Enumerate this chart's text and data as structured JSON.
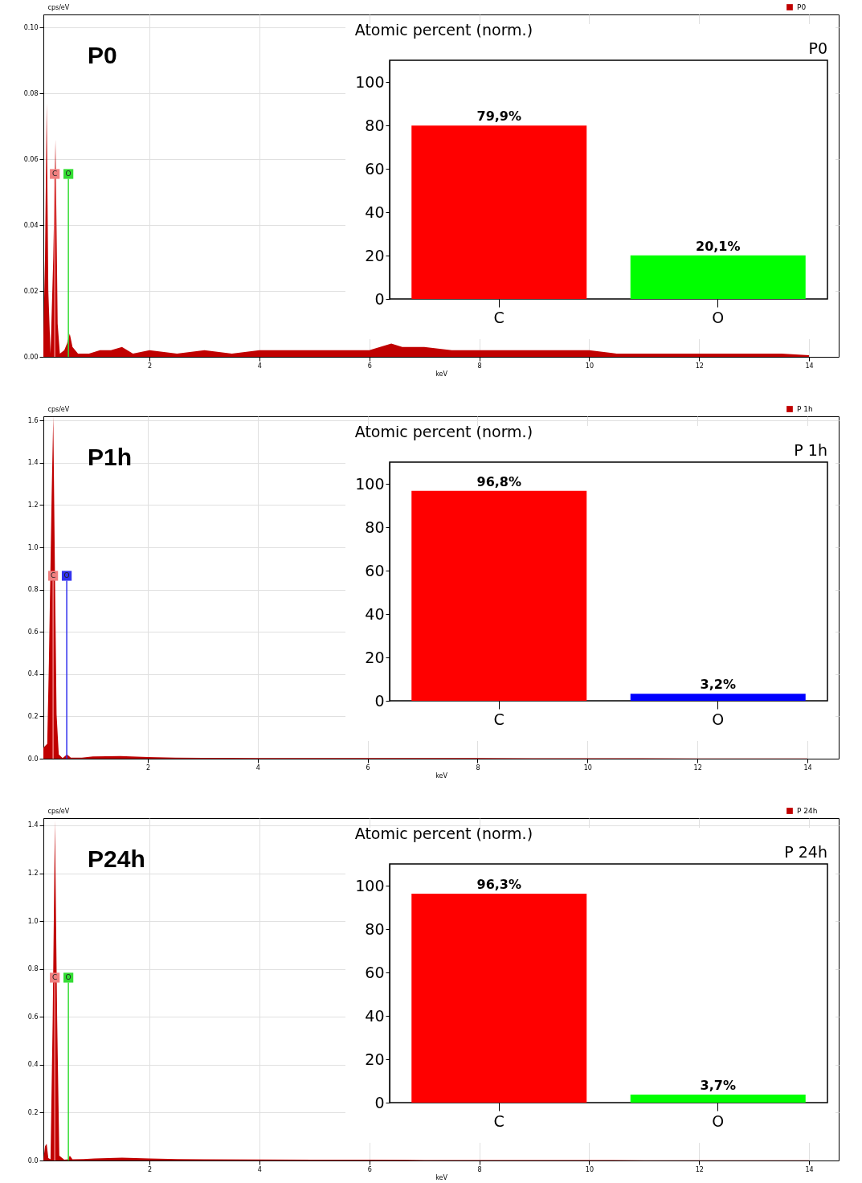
{
  "chart_data": [
    {
      "type": "area",
      "xlabel": "keV",
      "ylabel": "cps/eV",
      "annotations": [
        "P0"
      ],
      "legend": "top right",
      "grid": true,
      "xlim": [
        0.07,
        14.54
      ],
      "xticks": [
        2,
        4,
        6,
        8,
        10,
        12,
        14
      ],
      "ylim": [
        0,
        0.104
      ],
      "yticks": [
        {
          "value": 0,
          "label": "0.00"
        },
        {
          "value": 0.02,
          "label": "0.02"
        },
        {
          "value": 0.04,
          "label": "0.04"
        },
        {
          "value": 0.06,
          "label": "0.06"
        },
        {
          "value": 0.08,
          "label": "0.08"
        },
        {
          "value": 0.1,
          "label": "0.10"
        }
      ],
      "ref_lines": [
        {
          "axis": "x",
          "value": 0.277,
          "label": "C",
          "color": "#f08080"
        },
        {
          "axis": "x",
          "value": 0.525,
          "label": "O",
          "color": "#33dd33"
        }
      ],
      "series": [
        {
          "name": "P0",
          "color": "#c00000",
          "x": [
            0.07,
            0.1,
            0.13,
            0.16,
            0.2,
            0.25,
            0.29,
            0.33,
            0.37,
            0.45,
            0.5,
            0.55,
            0.6,
            0.7,
            0.9,
            1.1,
            1.3,
            1.5,
            1.7,
            2,
            2.5,
            3,
            3.5,
            4,
            4.5,
            5,
            5.5,
            6,
            6.4,
            6.6,
            7,
            7.5,
            8,
            8.5,
            9,
            9.5,
            10,
            10.5,
            11,
            11.5,
            12,
            12.5,
            13,
            13.5,
            14
          ],
          "values": [
            0.006,
            0.03,
            0.077,
            0.02,
            0.001,
            0.03,
            0.066,
            0.01,
            0.001,
            0.002,
            0.004,
            0.007,
            0.003,
            0.001,
            0.001,
            0.002,
            0.002,
            0.003,
            0.001,
            0.002,
            0.001,
            0.002,
            0.001,
            0.002,
            0.002,
            0.002,
            0.002,
            0.002,
            0.004,
            0.003,
            0.003,
            0.002,
            0.002,
            0.002,
            0.002,
            0.002,
            0.002,
            0.001,
            0.001,
            0.001,
            0.001,
            0.001,
            0.001,
            0.001,
            0.0005
          ]
        }
      ]
    },
    {
      "type": "bar",
      "title": "Atomic percent (norm.)",
      "annotations": [
        "P0"
      ],
      "categories": [
        "C",
        "O"
      ],
      "values": [
        79.9,
        20.1
      ],
      "colors": [
        "#ff0000",
        "#00ff00"
      ],
      "value_labels": [
        "79,9%",
        "20,1%"
      ],
      "ylim": [
        0,
        110
      ],
      "yticks": [
        0,
        20,
        40,
        60,
        80,
        100
      ]
    },
    {
      "type": "area",
      "xlabel": "keV",
      "ylabel": "cps/eV",
      "annotations": [
        "P1h"
      ],
      "legend": "top right",
      "grid": true,
      "xlim": [
        0.1,
        14.57
      ],
      "xticks": [
        2,
        4,
        6,
        8,
        10,
        12,
        14
      ],
      "ylim": [
        0,
        1.62
      ],
      "yticks": [
        {
          "value": 0,
          "label": "0.0"
        },
        {
          "value": 0.2,
          "label": "0.2"
        },
        {
          "value": 0.4,
          "label": "0.4"
        },
        {
          "value": 0.6,
          "label": "0.6"
        },
        {
          "value": 0.8,
          "label": "0.8"
        },
        {
          "value": 1,
          "label": "1.0"
        },
        {
          "value": 1.2,
          "label": "1.2"
        },
        {
          "value": 1.4,
          "label": "1.4"
        },
        {
          "value": 1.6,
          "label": "1.6"
        }
      ],
      "ref_lines": [
        {
          "axis": "x",
          "value": 0.277,
          "label": "C",
          "color": "#f08080"
        },
        {
          "axis": "x",
          "value": 0.525,
          "label": "O",
          "color": "#3333ee"
        }
      ],
      "series": [
        {
          "name": "P 1h",
          "color": "#c00000",
          "x": [
            0.1,
            0.13,
            0.17,
            0.2,
            0.25,
            0.28,
            0.31,
            0.34,
            0.38,
            0.45,
            0.53,
            0.6,
            0.8,
            1,
            1.5,
            2,
            2.5,
            3,
            4,
            5,
            6,
            7,
            8,
            9,
            10,
            11,
            12,
            13,
            14
          ],
          "values": [
            0.05,
            0.06,
            0.07,
            0.45,
            1.24,
            1.62,
            0.89,
            0.21,
            0.02,
            0.003,
            0.02,
            0.005,
            0.005,
            0.01,
            0.012,
            0.008,
            0.005,
            0.004,
            0.003,
            0.003,
            0.003,
            0.003,
            0.003,
            0.002,
            0.002,
            0.002,
            0.001,
            0.001,
            0.001
          ]
        }
      ]
    },
    {
      "type": "bar",
      "title": "Atomic percent (norm.)",
      "annotations": [
        "P 1h"
      ],
      "categories": [
        "C",
        "O"
      ],
      "values": [
        96.8,
        3.2
      ],
      "colors": [
        "#ff0000",
        "#0000ff"
      ],
      "value_labels": [
        "96,8%",
        "3,2%"
      ],
      "ylim": [
        0,
        110
      ],
      "yticks": [
        0,
        20,
        40,
        60,
        80,
        100
      ]
    },
    {
      "type": "area",
      "xlabel": "keV",
      "ylabel": "cps/eV",
      "annotations": [
        "P24h"
      ],
      "legend": "top right",
      "grid": true,
      "xlim": [
        0.07,
        14.54
      ],
      "xticks": [
        2,
        4,
        6,
        8,
        10,
        12,
        14
      ],
      "ylim": [
        0,
        1.43
      ],
      "yticks": [
        {
          "value": 0,
          "label": "0.0"
        },
        {
          "value": 0.2,
          "label": "0.2"
        },
        {
          "value": 0.4,
          "label": "0.4"
        },
        {
          "value": 0.6,
          "label": "0.6"
        },
        {
          "value": 0.8,
          "label": "0.8"
        },
        {
          "value": 1,
          "label": "1.0"
        },
        {
          "value": 1.2,
          "label": "1.2"
        },
        {
          "value": 1.4,
          "label": "1.4"
        }
      ],
      "ref_lines": [
        {
          "axis": "x",
          "value": 0.277,
          "label": "C",
          "color": "#f08080"
        },
        {
          "axis": "x",
          "value": 0.525,
          "label": "O",
          "color": "#33dd33"
        }
      ],
      "series": [
        {
          "name": "P 24h",
          "color": "#c00000",
          "x": [
            0.07,
            0.1,
            0.13,
            0.16,
            0.2,
            0.24,
            0.28,
            0.32,
            0.36,
            0.45,
            0.52,
            0.55,
            0.6,
            0.8,
            1,
            1.5,
            2,
            2.5,
            3,
            4,
            5,
            6,
            7,
            8,
            9,
            10,
            11,
            12,
            13,
            14
          ],
          "values": [
            0,
            0.06,
            0.07,
            0.01,
            0.005,
            0.6,
            1.42,
            0.6,
            0.02,
            0.003,
            0.005,
            0.02,
            0.005,
            0.006,
            0.008,
            0.012,
            0.008,
            0.006,
            0.005,
            0.004,
            0.003,
            0.003,
            0.002,
            0.002,
            0.002,
            0.002,
            0.001,
            0.001,
            0.001,
            0.001
          ]
        }
      ]
    },
    {
      "type": "bar",
      "title": "Atomic percent (norm.)",
      "annotations": [
        "P 24h"
      ],
      "categories": [
        "C",
        "O"
      ],
      "values": [
        96.3,
        3.7
      ],
      "colors": [
        "#ff0000",
        "#00ff00"
      ],
      "value_labels": [
        "96,3%",
        "3,7%"
      ],
      "ylim": [
        0,
        110
      ],
      "yticks": [
        0,
        20,
        40,
        60,
        80,
        100
      ]
    }
  ]
}
